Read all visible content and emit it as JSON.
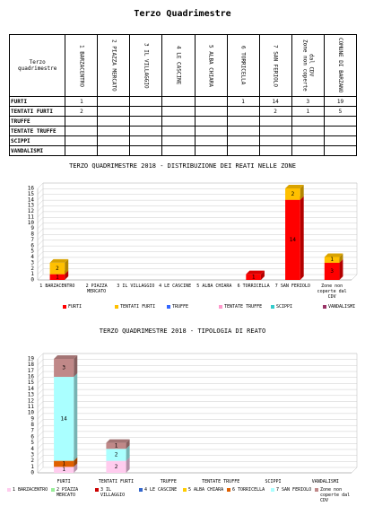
{
  "title": "Terzo Quadrimestre",
  "table": {
    "corner": "Terzo quadrimestre",
    "columns": [
      "1 BARZACENTRO",
      "2 PIAZZA MERCATO",
      "3 IL VILLAGGIO",
      "4 LE CASCINE",
      "5 ALBA CHIARA",
      "6 TORRICELLA",
      "7 SAN FERIOLO",
      "Zone non coperte dal CDV",
      "COMUNE DI BARZANO"
    ],
    "rows": [
      {
        "label": "FURTI",
        "cells": [
          1,
          null,
          null,
          null,
          null,
          1,
          14,
          3,
          19
        ]
      },
      {
        "label": "TENTATI FURTI",
        "cells": [
          2,
          null,
          null,
          null,
          null,
          null,
          2,
          1,
          5
        ]
      },
      {
        "label": "TRUFFE",
        "cells": [
          null,
          null,
          null,
          null,
          null,
          null,
          null,
          null,
          null
        ]
      },
      {
        "label": "TENTATE TRUFFE",
        "cells": [
          null,
          null,
          null,
          null,
          null,
          null,
          null,
          null,
          null
        ]
      },
      {
        "label": "SCIPPI",
        "cells": [
          null,
          null,
          null,
          null,
          null,
          null,
          null,
          null,
          null
        ]
      },
      {
        "label": "VANDALISMI",
        "cells": [
          null,
          null,
          null,
          null,
          null,
          null,
          null,
          null,
          null
        ]
      }
    ]
  },
  "chart_data": [
    {
      "type": "bar",
      "stacked": true,
      "title": "TERZO QUADRIMESTRE 2018 - DISTRIBUZIONE DEI REATI NELLE ZONE",
      "categories": [
        "1 BARZACENTRO",
        "2 PIAZZA MERCATO",
        "3 IL VILLAGGIO",
        "4 LE CASCINE",
        "5 ALBA CHIARA",
        "6 TORRICELLA",
        "7 SAN FERIOLO",
        "Zone non coperte dal CDV"
      ],
      "series": [
        {
          "name": "FURTI",
          "color": "#ff0000",
          "values": [
            1,
            null,
            null,
            null,
            null,
            1,
            14,
            3
          ]
        },
        {
          "name": "TENTATI FURTI",
          "color": "#ffc000",
          "values": [
            2,
            null,
            null,
            null,
            null,
            null,
            2,
            1
          ]
        },
        {
          "name": "TRUFFE",
          "color": "#3366ff",
          "values": [
            null,
            null,
            null,
            null,
            null,
            null,
            null,
            null
          ]
        },
        {
          "name": "TENTATE TRUFFE",
          "color": "#ff99cc",
          "values": [
            null,
            null,
            null,
            null,
            null,
            null,
            null,
            null
          ]
        },
        {
          "name": "SCIPPI",
          "color": "#33cccc",
          "values": [
            null,
            null,
            null,
            null,
            null,
            null,
            null,
            null
          ]
        },
        {
          "name": "VANDALISMI",
          "color": "#993366",
          "values": [
            null,
            null,
            null,
            null,
            null,
            null,
            null,
            null
          ]
        }
      ],
      "ylim": [
        0,
        16
      ],
      "yticks": [
        0,
        1,
        2,
        3,
        4,
        5,
        6,
        7,
        8,
        9,
        10,
        11,
        12,
        13,
        14,
        15,
        16
      ],
      "grid": true
    },
    {
      "type": "bar",
      "stacked": true,
      "title": "TERZO QUADRIMESTRE 2018 - TIPOLOGIA DI REATO",
      "categories": [
        "FURTI",
        "TENTATI FURTI",
        "TRUFFE",
        "TENTATE TRUFFE",
        "SCIPPI",
        "VANDALISMI"
      ],
      "series": [
        {
          "name": "1 BARZACENTRO",
          "color": "#ffccee",
          "values": [
            1,
            2,
            null,
            null,
            null,
            null
          ]
        },
        {
          "name": "2 PIAZZA MERCATO",
          "color": "#99ee99",
          "values": [
            null,
            null,
            null,
            null,
            null,
            null
          ]
        },
        {
          "name": "3 IL VILLAGGIO",
          "color": "#cc0000",
          "values": [
            null,
            null,
            null,
            null,
            null,
            null
          ]
        },
        {
          "name": "4 LE CASCINE",
          "color": "#3366cc",
          "values": [
            null,
            null,
            null,
            null,
            null,
            null
          ]
        },
        {
          "name": "5 ALBA CHIARA",
          "color": "#ffcc00",
          "values": [
            null,
            null,
            null,
            null,
            null,
            null
          ]
        },
        {
          "name": "6 TORRICELLA",
          "color": "#e06000",
          "values": [
            1,
            null,
            null,
            null,
            null,
            null
          ]
        },
        {
          "name": "7 SAN FERIOLO",
          "color": "#aaffff",
          "values": [
            14,
            2,
            null,
            null,
            null,
            null
          ]
        },
        {
          "name": "Zone non coperte dal CDV",
          "color": "#c08888",
          "values": [
            3,
            1,
            null,
            null,
            null,
            null
          ]
        }
      ],
      "ylim": [
        0,
        19
      ],
      "yticks": [
        0,
        1,
        2,
        3,
        4,
        5,
        6,
        7,
        8,
        9,
        10,
        11,
        12,
        13,
        14,
        15,
        16,
        17,
        18,
        19
      ],
      "grid": true
    }
  ]
}
